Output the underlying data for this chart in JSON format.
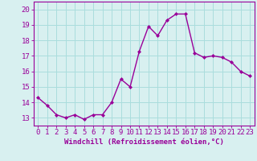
{
  "x": [
    0,
    1,
    2,
    3,
    4,
    5,
    6,
    7,
    8,
    9,
    10,
    11,
    12,
    13,
    14,
    15,
    16,
    17,
    18,
    19,
    20,
    21,
    22,
    23
  ],
  "y": [
    14.3,
    13.8,
    13.2,
    13.0,
    13.2,
    12.9,
    13.2,
    13.2,
    14.0,
    15.5,
    15.0,
    17.3,
    18.9,
    18.3,
    19.3,
    19.7,
    19.7,
    17.2,
    16.9,
    17.0,
    16.9,
    16.6,
    16.0,
    15.7
  ],
  "line_color": "#990099",
  "marker": "D",
  "marker_size": 2,
  "line_width": 1.0,
  "bg_color": "#d8f0f0",
  "grid_color": "#aadddd",
  "xlabel": "Windchill (Refroidissement éolien,°C)",
  "ylim": [
    12.5,
    20.5
  ],
  "xlim": [
    -0.5,
    23.5
  ],
  "yticks": [
    13,
    14,
    15,
    16,
    17,
    18,
    19,
    20
  ],
  "xticks": [
    0,
    1,
    2,
    3,
    4,
    5,
    6,
    7,
    8,
    9,
    10,
    11,
    12,
    13,
    14,
    15,
    16,
    17,
    18,
    19,
    20,
    21,
    22,
    23
  ],
  "xlabel_fontsize": 6.5,
  "tick_fontsize": 6.5
}
